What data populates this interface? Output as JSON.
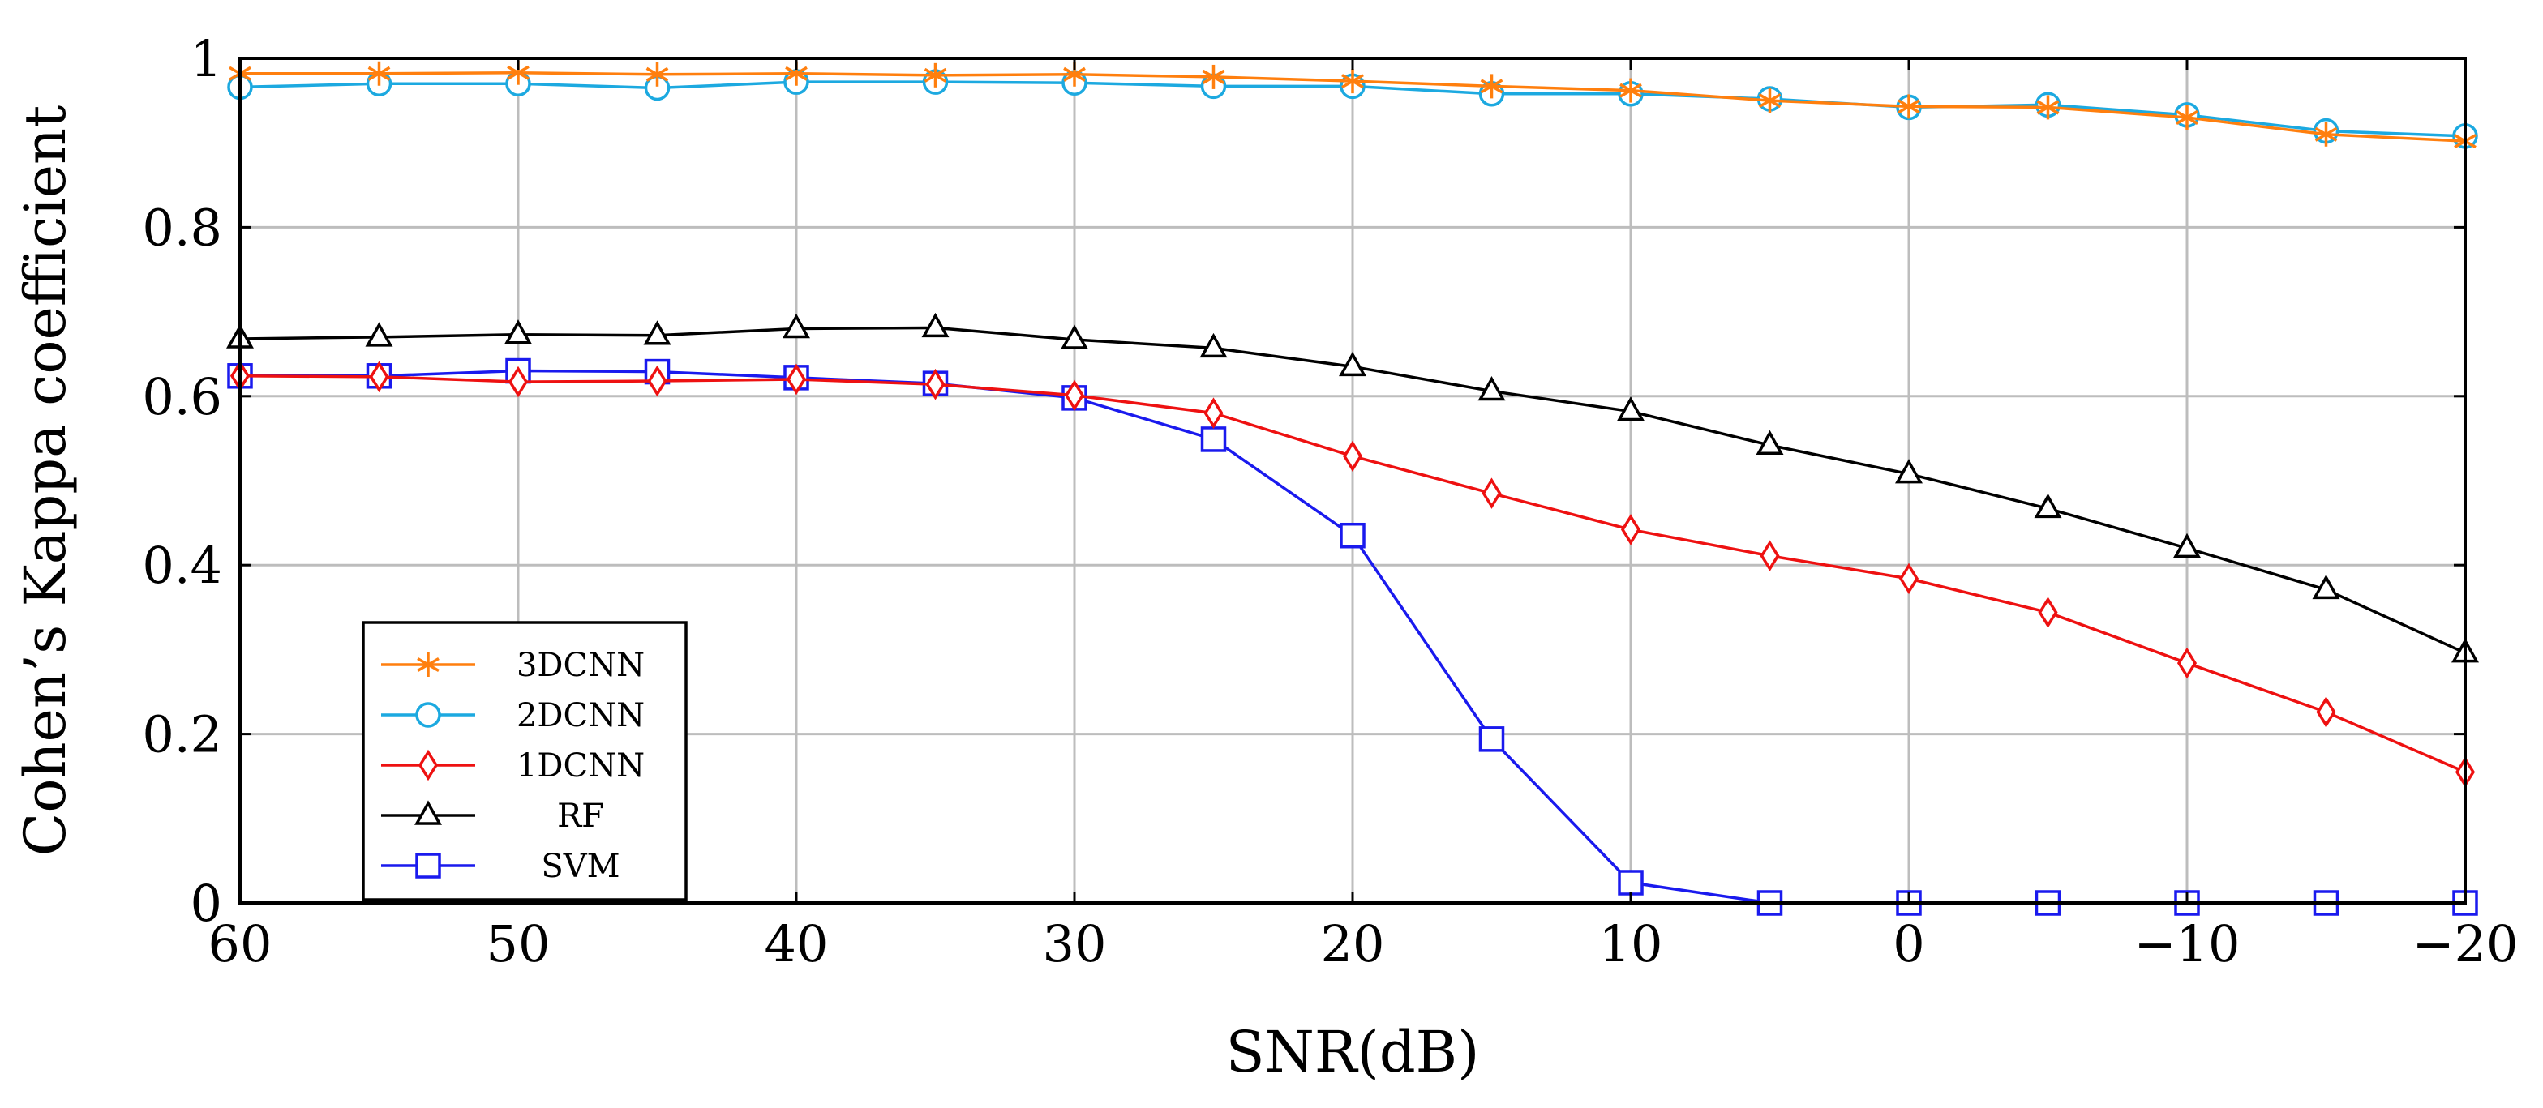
{
  "chart_data": {
    "type": "line",
    "title": "",
    "xlabel": "SNR(dB)",
    "ylabel": "Cohen’s Kappa coefficient",
    "xlim": [
      60,
      -20
    ],
    "ylim": [
      0,
      1
    ],
    "grid": true,
    "legend_position": "bottom-left",
    "x": [
      60,
      55,
      50,
      45,
      40,
      35,
      30,
      25,
      20,
      15,
      10,
      5,
      0,
      -5,
      -10,
      -15,
      -20
    ],
    "x_ticks": [
      60,
      50,
      40,
      30,
      20,
      10,
      0,
      -10,
      -20
    ],
    "x_tick_labels": [
      "60",
      "50",
      "40",
      "30",
      "20",
      "10",
      "0",
      "−10",
      "−20"
    ],
    "y_ticks": [
      0,
      0.2,
      0.4,
      0.6,
      0.8,
      1
    ],
    "y_tick_labels": [
      "0",
      "0.2",
      "0.4",
      "0.6",
      "0.8",
      "1"
    ],
    "series": [
      {
        "name": "3DCNN",
        "color": "#ff7f0e",
        "marker": "asterisk",
        "values": [
          0.982,
          0.982,
          0.983,
          0.981,
          0.982,
          0.98,
          0.981,
          0.978,
          0.973,
          0.967,
          0.962,
          0.95,
          0.943,
          0.942,
          0.93,
          0.91,
          0.902
        ]
      },
      {
        "name": "2DCNN",
        "color": "#1ca9e0",
        "marker": "circle",
        "values": [
          0.966,
          0.97,
          0.97,
          0.965,
          0.972,
          0.972,
          0.971,
          0.967,
          0.967,
          0.958,
          0.958,
          0.952,
          0.942,
          0.945,
          0.933,
          0.914,
          0.908
        ]
      },
      {
        "name": "1DCNN",
        "color": "#ee1111",
        "marker": "diamond",
        "values": [
          0.624,
          0.623,
          0.617,
          0.618,
          0.62,
          0.614,
          0.601,
          0.58,
          0.529,
          0.485,
          0.442,
          0.411,
          0.384,
          0.344,
          0.284,
          0.226,
          0.155
        ]
      },
      {
        "name": "RF",
        "color": "#000000",
        "marker": "triangle",
        "values": [
          0.668,
          0.67,
          0.673,
          0.672,
          0.68,
          0.681,
          0.667,
          0.657,
          0.635,
          0.606,
          0.582,
          0.542,
          0.508,
          0.467,
          0.42,
          0.371,
          0.296
        ]
      },
      {
        "name": "SVM",
        "color": "#1a1aee",
        "marker": "square",
        "values": [
          0.624,
          0.624,
          0.63,
          0.629,
          0.622,
          0.615,
          0.598,
          0.549,
          0.435,
          0.194,
          0.024,
          0.0,
          0.0,
          0.0,
          0.0,
          0.0,
          0.0
        ]
      }
    ]
  }
}
